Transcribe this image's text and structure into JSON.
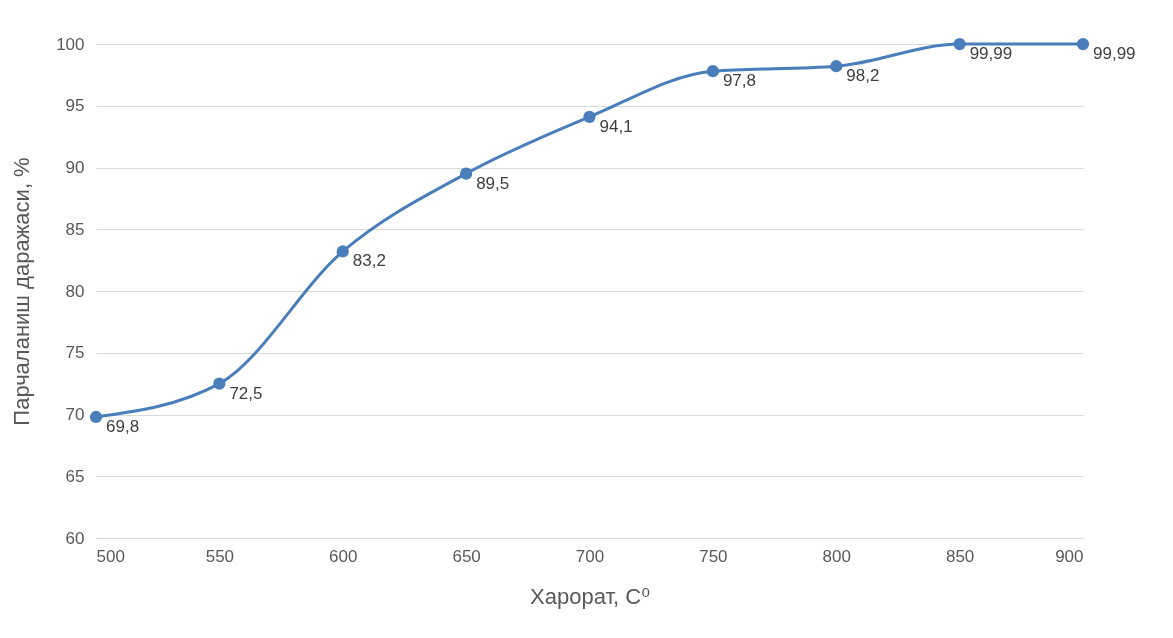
{
  "chart_data": {
    "type": "line",
    "xlabel": "Харорат, C⁰",
    "ylabel": "Парчаланиш даражаси, %",
    "x": [
      500,
      550,
      600,
      650,
      700,
      750,
      800,
      850,
      900
    ],
    "series": [
      {
        "color": "#4a7ebb",
        "values": [
          69.8,
          72.5,
          83.2,
          89.5,
          94.1,
          97.8,
          98.2,
          99.99,
          99.99
        ],
        "value_labels": [
          "69,8",
          "72,5",
          "83,2",
          "89,5",
          "94,1",
          "97,8",
          "98,2",
          "99,99",
          "99,99"
        ]
      }
    ],
    "xlim": [
      500,
      900
    ],
    "xticks": [
      500,
      550,
      600,
      650,
      700,
      750,
      800,
      850,
      900
    ],
    "ylim": [
      60,
      100
    ],
    "yticks": [
      60,
      65,
      70,
      75,
      80,
      85,
      90,
      95,
      100
    ],
    "grid": "y",
    "marker": "circle",
    "line_style": "solid"
  }
}
